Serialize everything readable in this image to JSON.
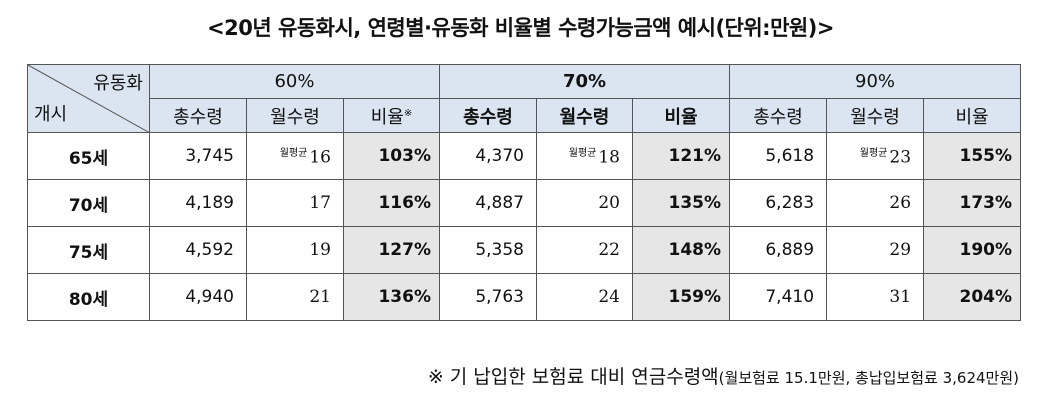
{
  "title": "<20년 유동화시, 연령별·유동화 비율별 수령가능금액 예시(단위:만원)>",
  "corner": {
    "top": "유동화",
    "bottom": "개시"
  },
  "groups": [
    "60%",
    "70%",
    "90%"
  ],
  "subheaders": {
    "total": "총수령",
    "monthly": "월수령",
    "ratio": "비율",
    "ratio_mark": "※"
  },
  "avg_label": "월평균",
  "rows": [
    {
      "age": "65세",
      "c": [
        {
          "total": "3,745",
          "monthly": "16",
          "ratio": "103%"
        },
        {
          "total": "4,370",
          "monthly": "18",
          "ratio": "121%"
        },
        {
          "total": "5,618",
          "monthly": "23",
          "ratio": "155%"
        }
      ]
    },
    {
      "age": "70세",
      "c": [
        {
          "total": "4,189",
          "monthly": "17",
          "ratio": "116%"
        },
        {
          "total": "4,887",
          "monthly": "20",
          "ratio": "135%"
        },
        {
          "total": "6,283",
          "monthly": "26",
          "ratio": "173%"
        }
      ]
    },
    {
      "age": "75세",
      "c": [
        {
          "total": "4,592",
          "monthly": "19",
          "ratio": "127%"
        },
        {
          "total": "5,358",
          "monthly": "22",
          "ratio": "148%"
        },
        {
          "total": "6,889",
          "monthly": "29",
          "ratio": "190%"
        }
      ]
    },
    {
      "age": "80세",
      "c": [
        {
          "total": "4,940",
          "monthly": "21",
          "ratio": "136%"
        },
        {
          "total": "5,763",
          "monthly": "24",
          "ratio": "159%"
        },
        {
          "total": "7,410",
          "monthly": "31",
          "ratio": "204%"
        }
      ]
    }
  ],
  "note": {
    "main": "※ 기 납입한 보험료 대비 연금수령액",
    "detail": "(월보험료 15.1만원, 총납입보험료 3,624만원)"
  }
}
